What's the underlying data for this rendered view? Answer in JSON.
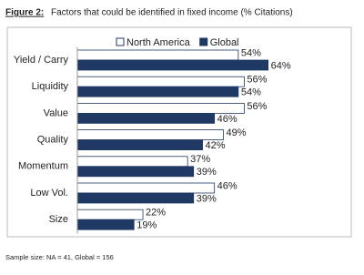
{
  "chart_data": {
    "type": "bar",
    "orientation": "horizontal",
    "title_label": "Figure 2:",
    "title": "Factors that could be identified in fixed income (% Citations)",
    "footnote": "Sample size: NA = 41, Global = 156",
    "categories": [
      "Yield / Carry",
      "Liquidity",
      "Value",
      "Quality",
      "Momentum",
      "Low Vol.",
      "Size"
    ],
    "series": [
      {
        "name": "North America",
        "color": "#ffffff",
        "values": [
          54,
          56,
          56,
          49,
          37,
          46,
          22
        ],
        "value_labels": [
          "54%",
          "56%",
          "56%",
          "49%",
          "37%",
          "46%",
          "22%"
        ]
      },
      {
        "name": "Global",
        "color": "#1f3864",
        "values": [
          64,
          54,
          46,
          42,
          39,
          39,
          19
        ],
        "value_labels": [
          "64%",
          "54%",
          "46%",
          "42%",
          "39%",
          "39%",
          "19%"
        ]
      }
    ],
    "xlim": [
      0,
      80
    ],
    "legend": "top"
  }
}
